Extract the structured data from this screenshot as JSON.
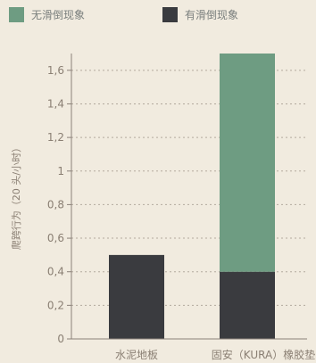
{
  "chart_data": {
    "type": "bar",
    "stacked": true,
    "categories": [
      "水泥地板",
      "固安（KURA）橡胶垫"
    ],
    "series": [
      {
        "name": "有滑倒现象",
        "color": "#3a3b3f",
        "values": [
          0.5,
          0.4
        ]
      },
      {
        "name": "无滑倒现象",
        "color": "#6e9c82",
        "values": [
          0.0,
          1.3
        ]
      }
    ],
    "legend_order": [
      1,
      0
    ],
    "yticks": [
      0,
      0.2,
      0.4,
      0.6,
      0.8,
      1,
      1.2,
      1.4,
      1.6
    ],
    "ytick_labels": [
      "0",
      "0,2",
      "0,4",
      "0,6",
      "0,8",
      "1",
      "1,2",
      "1,4",
      "1,6"
    ],
    "ylim": [
      0,
      1.7
    ],
    "ylabel": "爬跨行为（20 头/小时）",
    "xlabel": "",
    "title": "",
    "grid": "horizontal-dashed",
    "legend_position": "top"
  }
}
